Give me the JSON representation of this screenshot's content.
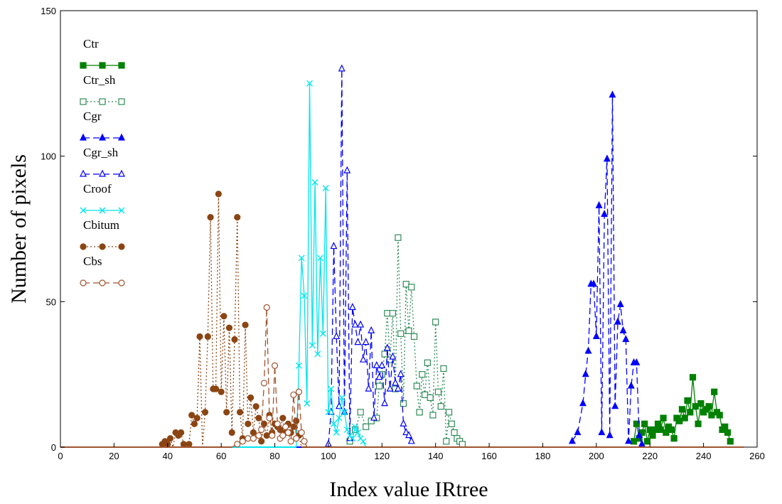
{
  "chart_data": {
    "type": "line",
    "title": "",
    "xlabel": "Index value IRtree",
    "ylabel": "Number of pixels",
    "xlim": [
      0,
      260
    ],
    "ylim": [
      0,
      150
    ],
    "xticks": [
      0,
      20,
      40,
      60,
      80,
      100,
      120,
      140,
      160,
      180,
      200,
      220,
      240,
      260
    ],
    "yticks": [
      0,
      50,
      100,
      150
    ],
    "grid": false,
    "legend_position": "top-left",
    "series": [
      {
        "name": "Ctr",
        "color": "#008000",
        "line_style": "solid",
        "marker": "square-filled",
        "points": [
          [
            214,
            2
          ],
          [
            215,
            8
          ],
          [
            216,
            3
          ],
          [
            217,
            5
          ],
          [
            218,
            8
          ],
          [
            219,
            2
          ],
          [
            220,
            6
          ],
          [
            221,
            4
          ],
          [
            222,
            6
          ],
          [
            223,
            8
          ],
          [
            224,
            6
          ],
          [
            225,
            10
          ],
          [
            226,
            5
          ],
          [
            227,
            7
          ],
          [
            228,
            6
          ],
          [
            229,
            3
          ],
          [
            230,
            10
          ],
          [
            231,
            9
          ],
          [
            232,
            13
          ],
          [
            233,
            10
          ],
          [
            234,
            16
          ],
          [
            235,
            12
          ],
          [
            236,
            24
          ],
          [
            237,
            14
          ],
          [
            238,
            8
          ],
          [
            239,
            15
          ],
          [
            240,
            12
          ],
          [
            241,
            13
          ],
          [
            242,
            14
          ],
          [
            243,
            11
          ],
          [
            244,
            19
          ],
          [
            245,
            12
          ],
          [
            246,
            11
          ],
          [
            247,
            6
          ],
          [
            248,
            7
          ],
          [
            249,
            5
          ],
          [
            250,
            2
          ]
        ]
      },
      {
        "name": "Ctr_sh",
        "color": "#2e8b57",
        "line_style": "dotted",
        "marker": "square-open",
        "points": [
          [
            108,
            2
          ],
          [
            110,
            6
          ],
          [
            112,
            12
          ],
          [
            114,
            7
          ],
          [
            116,
            9
          ],
          [
            118,
            10
          ],
          [
            119,
            21
          ],
          [
            120,
            25
          ],
          [
            121,
            32
          ],
          [
            122,
            46
          ],
          [
            123,
            30
          ],
          [
            124,
            46
          ],
          [
            125,
            20
          ],
          [
            126,
            72
          ],
          [
            127,
            39
          ],
          [
            128,
            15
          ],
          [
            129,
            56
          ],
          [
            130,
            40
          ],
          [
            131,
            55
          ],
          [
            132,
            38
          ],
          [
            133,
            21
          ],
          [
            134,
            12
          ],
          [
            135,
            25
          ],
          [
            136,
            18
          ],
          [
            137,
            29
          ],
          [
            138,
            17
          ],
          [
            139,
            11
          ],
          [
            140,
            43
          ],
          [
            141,
            19
          ],
          [
            142,
            14
          ],
          [
            143,
            27
          ],
          [
            144,
            2
          ],
          [
            145,
            12
          ],
          [
            146,
            8
          ],
          [
            147,
            5
          ],
          [
            148,
            3
          ],
          [
            149,
            2
          ],
          [
            150,
            1
          ]
        ]
      },
      {
        "name": "Cgr",
        "color": "#0000ff",
        "line_style": "dash",
        "marker": "triangle-filled",
        "points": [
          [
            191,
            2
          ],
          [
            193,
            5
          ],
          [
            195,
            15
          ],
          [
            196,
            25
          ],
          [
            197,
            33
          ],
          [
            198,
            56
          ],
          [
            199,
            56
          ],
          [
            200,
            38
          ],
          [
            201,
            83
          ],
          [
            202,
            5
          ],
          [
            203,
            80
          ],
          [
            204,
            99
          ],
          [
            205,
            4
          ],
          [
            206,
            121
          ],
          [
            207,
            14
          ],
          [
            208,
            43
          ],
          [
            209,
            49
          ],
          [
            210,
            40
          ],
          [
            211,
            37
          ],
          [
            212,
            2
          ],
          [
            213,
            21
          ],
          [
            214,
            29
          ],
          [
            215,
            29
          ],
          [
            216,
            4
          ],
          [
            217,
            1
          ]
        ]
      },
      {
        "name": "Cgr_sh",
        "color": "#0000ff",
        "line_style": "dash",
        "marker": "triangle-open",
        "points": [
          [
            100,
            1
          ],
          [
            101,
            12
          ],
          [
            102,
            69
          ],
          [
            103,
            38
          ],
          [
            104,
            14
          ],
          [
            105,
            130
          ],
          [
            106,
            12
          ],
          [
            107,
            95
          ],
          [
            108,
            3
          ],
          [
            109,
            48
          ],
          [
            110,
            42
          ],
          [
            111,
            36
          ],
          [
            112,
            42
          ],
          [
            113,
            30
          ],
          [
            114,
            36
          ],
          [
            115,
            20
          ],
          [
            116,
            40
          ],
          [
            117,
            10
          ],
          [
            118,
            28
          ],
          [
            119,
            24
          ],
          [
            120,
            28
          ],
          [
            121,
            15
          ],
          [
            122,
            34
          ],
          [
            123,
            20
          ],
          [
            124,
            31
          ],
          [
            125,
            22
          ],
          [
            126,
            20
          ],
          [
            127,
            25
          ],
          [
            128,
            8
          ],
          [
            129,
            5
          ],
          [
            130,
            4
          ],
          [
            131,
            2
          ]
        ]
      },
      {
        "name": "Croof",
        "color": "#00e5ee",
        "line_style": "solid",
        "marker": "x",
        "points": [
          [
            88,
            0
          ],
          [
            89,
            28
          ],
          [
            90,
            65
          ],
          [
            91,
            52
          ],
          [
            92,
            15
          ],
          [
            93,
            125
          ],
          [
            94,
            35
          ],
          [
            95,
            91
          ],
          [
            96,
            32
          ],
          [
            97,
            65
          ],
          [
            98,
            39
          ],
          [
            99,
            89
          ],
          [
            100,
            12
          ],
          [
            101,
            20
          ],
          [
            102,
            8
          ],
          [
            103,
            5
          ],
          [
            104,
            10
          ],
          [
            105,
            17
          ],
          [
            106,
            12
          ],
          [
            107,
            6
          ],
          [
            108,
            4
          ],
          [
            109,
            3
          ],
          [
            110,
            7
          ],
          [
            111,
            5
          ],
          [
            112,
            3
          ],
          [
            113,
            2
          ],
          [
            114,
            0
          ]
        ]
      },
      {
        "name": "Cbitum",
        "color": "#8b4513",
        "line_style": "dotted",
        "marker": "circle-filled",
        "points": [
          [
            38,
            1
          ],
          [
            39,
            2
          ],
          [
            40,
            1
          ],
          [
            41,
            3
          ],
          [
            42,
            0
          ],
          [
            43,
            5
          ],
          [
            44,
            4
          ],
          [
            45,
            5
          ],
          [
            46,
            1
          ],
          [
            47,
            0
          ],
          [
            48,
            1
          ],
          [
            49,
            11
          ],
          [
            50,
            8
          ],
          [
            51,
            10
          ],
          [
            52,
            38
          ],
          [
            53,
            0
          ],
          [
            54,
            12
          ],
          [
            55,
            38
          ],
          [
            56,
            79
          ],
          [
            57,
            20
          ],
          [
            58,
            20
          ],
          [
            59,
            87
          ],
          [
            60,
            19
          ],
          [
            61,
            45
          ],
          [
            62,
            12
          ],
          [
            63,
            41
          ],
          [
            64,
            5
          ],
          [
            65,
            37
          ],
          [
            66,
            79
          ],
          [
            67,
            12
          ],
          [
            68,
            3
          ],
          [
            69,
            42
          ],
          [
            70,
            8
          ],
          [
            71,
            17
          ],
          [
            72,
            5
          ],
          [
            73,
            14
          ],
          [
            74,
            10
          ],
          [
            75,
            2
          ],
          [
            76,
            8
          ],
          [
            77,
            4
          ],
          [
            78,
            11
          ],
          [
            79,
            5
          ],
          [
            80,
            8
          ],
          [
            81,
            7
          ],
          [
            82,
            6
          ],
          [
            83,
            10
          ],
          [
            84,
            5
          ],
          [
            85,
            8
          ],
          [
            86,
            5
          ],
          [
            87,
            7
          ],
          [
            88,
            9
          ],
          [
            89,
            4
          ],
          [
            90,
            0
          ]
        ]
      },
      {
        "name": "Cbs",
        "color": "#a0522d",
        "line_style": "dash",
        "marker": "circle-open",
        "points": [
          [
            64,
            0
          ],
          [
            66,
            1
          ],
          [
            68,
            2
          ],
          [
            70,
            3
          ],
          [
            72,
            3
          ],
          [
            74,
            4
          ],
          [
            75,
            6
          ],
          [
            76,
            22
          ],
          [
            77,
            48
          ],
          [
            78,
            10
          ],
          [
            79,
            4
          ],
          [
            80,
            28
          ],
          [
            81,
            8
          ],
          [
            82,
            3
          ],
          [
            83,
            4
          ],
          [
            84,
            7
          ],
          [
            85,
            5
          ],
          [
            86,
            2
          ],
          [
            87,
            18
          ],
          [
            88,
            3
          ],
          [
            89,
            19
          ],
          [
            90,
            5
          ],
          [
            91,
            2
          ],
          [
            92,
            0
          ]
        ]
      }
    ]
  }
}
